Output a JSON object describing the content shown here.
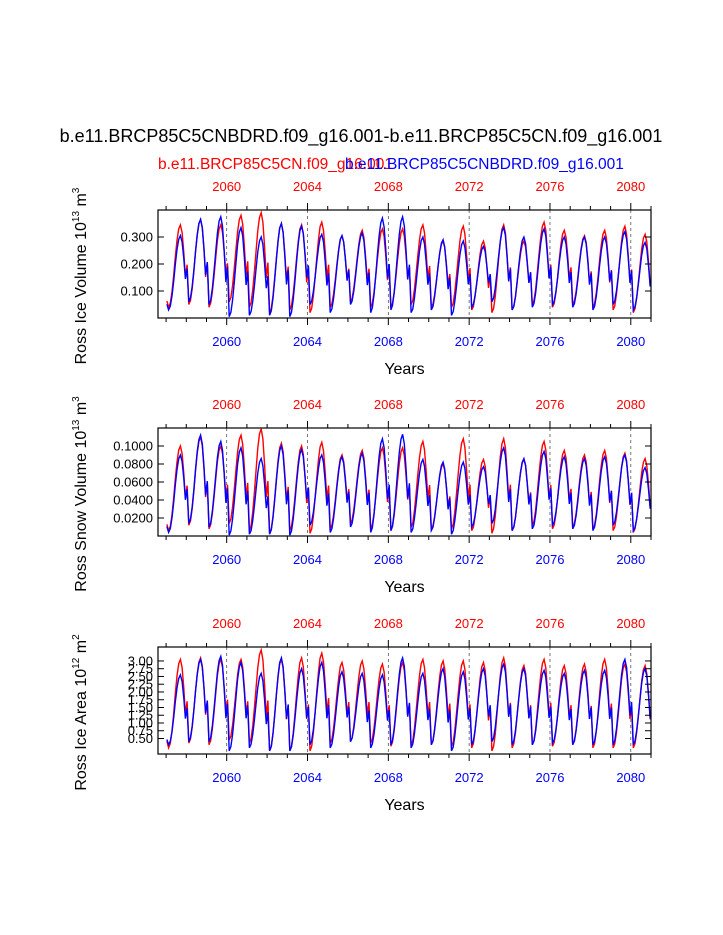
{
  "title": "b.e11.BRCP85C5CNBDRD.f09_g16.001-b.e11.BRCP85C5CN.f09_g16.001",
  "legend": {
    "red_label": "b.e11.BRCP85C5CN.f09_g16.001",
    "blue_label": "b.e11.BRCP85C5CNBDRD.f09_g16.001"
  },
  "colors": {
    "series_red": "#ff0000",
    "series_blue": "#0000ff",
    "axis": "#000000",
    "gridline": "#555555"
  },
  "chart_data": [
    {
      "type": "line",
      "id": "ice-volume",
      "ylabel": "Ross Ice Volume",
      "yunit_base": "10",
      "yunit_exp": "13",
      "yunit_tail": "m",
      "yunit_tail_exp": "3",
      "xlabel": "Years",
      "xlim": [
        2056.6,
        2081.0
      ],
      "ylim": [
        0.0,
        0.4
      ],
      "yticks": [
        0.1,
        0.2,
        0.3
      ],
      "ytick_labels": [
        "0.100",
        "0.200",
        "0.300"
      ],
      "xticks": [
        2060,
        2064,
        2068,
        2072,
        2076,
        2080
      ],
      "xtick_labels": [
        "2060",
        "2064",
        "2068",
        "2072",
        "2076",
        "2080"
      ],
      "series": [
        {
          "name": "b.e11.BRCP85C5CN.f09_g16.001",
          "color": "red",
          "year_start": 2057,
          "max": [
            0.345,
            0.365,
            0.345,
            0.38,
            0.39,
            0.35,
            0.345,
            0.355,
            0.305,
            0.325,
            0.33,
            0.33,
            0.345,
            0.285,
            0.34,
            0.285,
            0.345,
            0.285,
            0.355,
            0.325,
            0.305,
            0.325,
            0.34,
            0.31
          ],
          "min": [
            0.04,
            0.05,
            0.04,
            0.06,
            0.04,
            0.02,
            0.03,
            0.02,
            0.04,
            0.06,
            0.04,
            0.04,
            0.05,
            0.04,
            0.04,
            0.03,
            0.02,
            0.03,
            0.05,
            0.04,
            0.05,
            0.04,
            0.03,
            0.02
          ]
        },
        {
          "name": "b.e11.BRCP85C5CNBDRD.f09_g16.001",
          "color": "blue",
          "year_start": 2057,
          "max": [
            0.305,
            0.365,
            0.375,
            0.335,
            0.3,
            0.35,
            0.34,
            0.31,
            0.305,
            0.315,
            0.37,
            0.375,
            0.3,
            0.29,
            0.285,
            0.265,
            0.335,
            0.3,
            0.33,
            0.3,
            0.3,
            0.3,
            0.32,
            0.28
          ],
          "min": [
            0.03,
            0.06,
            0.05,
            0.005,
            0.01,
            0.01,
            0.005,
            0.05,
            0.02,
            0.05,
            0.02,
            0.03,
            0.02,
            0.03,
            0.01,
            0.04,
            0.06,
            0.03,
            0.04,
            0.05,
            0.04,
            0.03,
            0.05,
            0.03
          ]
        }
      ]
    },
    {
      "type": "line",
      "id": "snow-volume",
      "ylabel": "Ross Snow Volume",
      "yunit_base": "10",
      "yunit_exp": "13",
      "yunit_tail": "m",
      "yunit_tail_exp": "3",
      "xlabel": "Years",
      "xlim": [
        2056.6,
        2081.0
      ],
      "ylim": [
        0.0,
        0.12
      ],
      "yticks": [
        0.02,
        0.04,
        0.06,
        0.08,
        0.1
      ],
      "ytick_labels": [
        "0.0200",
        "0.0400",
        "0.0600",
        "0.0800",
        "0.1000"
      ],
      "xticks": [
        2060,
        2064,
        2068,
        2072,
        2076,
        2080
      ],
      "xtick_labels": [
        "2060",
        "2064",
        "2068",
        "2072",
        "2076",
        "2080"
      ],
      "series": [
        {
          "name": "b.e11.BRCP85C5CN.f09_g16.001",
          "color": "red",
          "year_start": 2057,
          "max": [
            0.1,
            0.11,
            0.1,
            0.112,
            0.119,
            0.103,
            0.1,
            0.104,
            0.09,
            0.095,
            0.098,
            0.098,
            0.105,
            0.08,
            0.108,
            0.085,
            0.108,
            0.085,
            0.105,
            0.095,
            0.09,
            0.095,
            0.092,
            0.086
          ],
          "min": [
            0.006,
            0.012,
            0.008,
            0.014,
            0.006,
            0.003,
            0.006,
            0.003,
            0.008,
            0.014,
            0.008,
            0.006,
            0.01,
            0.008,
            0.008,
            0.006,
            0.003,
            0.006,
            0.012,
            0.008,
            0.01,
            0.008,
            0.006,
            0.004
          ]
        },
        {
          "name": "b.e11.BRCP85C5CNBDRD.f09_g16.001",
          "color": "blue",
          "year_start": 2057,
          "max": [
            0.09,
            0.112,
            0.105,
            0.098,
            0.086,
            0.1,
            0.096,
            0.09,
            0.088,
            0.092,
            0.108,
            0.113,
            0.085,
            0.082,
            0.082,
            0.077,
            0.098,
            0.086,
            0.094,
            0.088,
            0.086,
            0.088,
            0.09,
            0.076
          ],
          "min": [
            0.004,
            0.014,
            0.01,
            0.001,
            0.002,
            0.002,
            0.001,
            0.012,
            0.004,
            0.01,
            0.004,
            0.006,
            0.004,
            0.006,
            0.002,
            0.01,
            0.014,
            0.006,
            0.008,
            0.012,
            0.008,
            0.006,
            0.012,
            0.006
          ]
        }
      ]
    },
    {
      "type": "line",
      "id": "ice-area",
      "ylabel": "Ross Ice Area",
      "yunit_base": "10",
      "yunit_exp": "12",
      "yunit_tail": "m",
      "yunit_tail_exp": "2",
      "xlabel": "Years",
      "xlim": [
        2056.6,
        2081.0
      ],
      "ylim": [
        0.0,
        3.45
      ],
      "yticks": [
        0.5,
        0.75,
        1.0,
        1.25,
        1.5,
        1.75,
        2.0,
        2.25,
        2.5,
        2.75,
        3.0
      ],
      "ytick_labels": [
        "0.50",
        "0.75",
        "1.00",
        "1.25",
        "1.50",
        "1.75",
        "2.00",
        "2.25",
        "2.50",
        "2.75",
        "3.00"
      ],
      "xticks": [
        2060,
        2064,
        2068,
        2072,
        2076,
        2080
      ],
      "xtick_labels": [
        "2060",
        "2064",
        "2068",
        "2072",
        "2076",
        "2080"
      ],
      "series": [
        {
          "name": "b.e11.BRCP85C5CN.f09_g16.001",
          "color": "red",
          "year_start": 2057,
          "max": [
            3.05,
            3.1,
            3.05,
            3.05,
            3.35,
            3.05,
            3.1,
            3.25,
            2.95,
            3.0,
            2.9,
            2.95,
            3.05,
            3.0,
            3.0,
            2.95,
            3.1,
            2.85,
            3.05,
            2.85,
            2.9,
            3.05,
            2.9,
            2.85
          ],
          "min": [
            0.2,
            0.35,
            0.3,
            0.45,
            0.35,
            0.1,
            0.1,
            0.1,
            0.35,
            0.4,
            0.35,
            0.25,
            0.3,
            0.3,
            0.25,
            0.2,
            0.1,
            0.2,
            0.3,
            0.25,
            0.3,
            0.2,
            0.2,
            0.2
          ]
        },
        {
          "name": "b.e11.BRCP85C5CNBDRD.f09_g16.001",
          "color": "blue",
          "year_start": 2057,
          "max": [
            2.55,
            3.05,
            3.15,
            2.95,
            2.6,
            3.1,
            2.75,
            2.95,
            2.65,
            2.6,
            2.55,
            3.1,
            2.6,
            2.75,
            2.65,
            2.75,
            2.9,
            2.75,
            2.7,
            2.6,
            2.7,
            2.7,
            3.05,
            2.75
          ],
          "min": [
            0.3,
            0.4,
            0.4,
            0.1,
            0.2,
            0.1,
            0.1,
            0.3,
            0.2,
            0.4,
            0.2,
            0.3,
            0.2,
            0.3,
            0.1,
            0.3,
            0.4,
            0.3,
            0.3,
            0.35,
            0.3,
            0.3,
            0.3,
            0.3
          ]
        }
      ]
    }
  ]
}
